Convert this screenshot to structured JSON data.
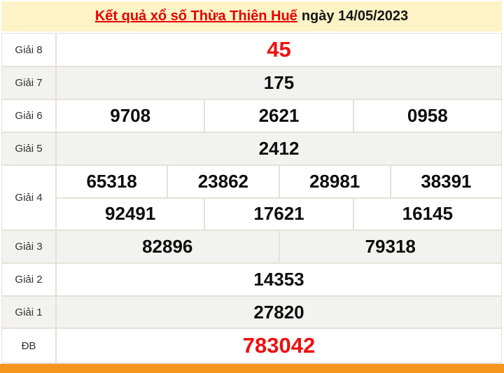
{
  "header": {
    "title_link": "Kết quả xổ số Thừa Thiên Huế",
    "title_date": "ngày 14/05/2023"
  },
  "table": {
    "rows": [
      {
        "key": "g8",
        "label": "Giải 8",
        "highlight": true,
        "value_rows": [
          [
            "45"
          ]
        ]
      },
      {
        "key": "g7",
        "label": "Giải 7",
        "highlight": false,
        "value_rows": [
          [
            "175"
          ]
        ]
      },
      {
        "key": "g6",
        "label": "Giải 6",
        "highlight": false,
        "value_rows": [
          [
            "9708",
            "2621",
            "0958"
          ]
        ]
      },
      {
        "key": "g5",
        "label": "Giải 5",
        "highlight": false,
        "value_rows": [
          [
            "2412"
          ]
        ]
      },
      {
        "key": "g4",
        "label": "Giải 4",
        "highlight": false,
        "value_rows": [
          [
            "65318",
            "23862",
            "28981",
            "38391"
          ],
          [
            "92491",
            "17621",
            "16145"
          ]
        ]
      },
      {
        "key": "g3",
        "label": "Giải 3",
        "highlight": false,
        "value_rows": [
          [
            "82896",
            "79318"
          ]
        ]
      },
      {
        "key": "g2",
        "label": "Giải 2",
        "highlight": false,
        "value_rows": [
          [
            "14353"
          ]
        ]
      },
      {
        "key": "g1",
        "label": "Giải 1",
        "highlight": false,
        "value_rows": [
          [
            "27820"
          ]
        ]
      },
      {
        "key": "db",
        "label": "ĐB",
        "highlight": true,
        "value_rows": [
          [
            "783042"
          ]
        ]
      }
    ]
  },
  "colors": {
    "header_background": "#fdf3c6",
    "title_link_red": "#e80000",
    "highlight_number_red": "#f00f0f",
    "zebra_gray": "#f2f2f1",
    "border": "#e6e1d8",
    "accent_bar_orange": "#f6941e"
  }
}
